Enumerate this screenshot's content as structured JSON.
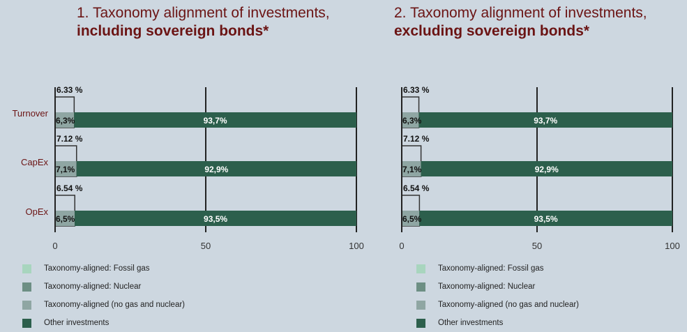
{
  "colors": {
    "fossil_gas": "#a8d5be",
    "nuclear": "#6d8f84",
    "no_gas_nuclear": "#8fa6a3",
    "other": "#2c5f4c",
    "title": "#6b1414"
  },
  "legend": [
    {
      "label": "Taxonomy-aligned: Fossil gas",
      "color_key": "fossil_gas"
    },
    {
      "label": "Taxonomy-aligned: Nuclear",
      "color_key": "nuclear"
    },
    {
      "label": "Taxonomy-aligned (no gas and nuclear)",
      "color_key": "no_gas_nuclear"
    },
    {
      "label": "Other investments",
      "color_key": "other"
    }
  ],
  "chart_data": [
    {
      "type": "bar",
      "orientation": "horizontal",
      "stacked": true,
      "title_prefix": "1. Taxonomy alignment of investments, ",
      "title_bold": "including sovereign bonds*",
      "categories": [
        "Turnover",
        "CapEx",
        "OpEx"
      ],
      "xlim": [
        0,
        100
      ],
      "xticks": [
        "0",
        "50",
        "100"
      ],
      "series": [
        {
          "name": "Taxonomy-aligned (no gas and nuclear)",
          "values": [
            6.3,
            7.1,
            6.5
          ],
          "labels": [
            "6,3%",
            "7,1%",
            "6,5%"
          ]
        },
        {
          "name": "Other investments",
          "values": [
            93.7,
            92.9,
            93.5
          ],
          "labels": [
            "93,7%",
            "92,9%",
            "93,5%"
          ]
        }
      ],
      "total_aligned": [
        6.33,
        7.12,
        6.54
      ],
      "total_aligned_labels": [
        "6.33 %",
        "7.12 %",
        "6.54 %"
      ]
    },
    {
      "type": "bar",
      "orientation": "horizontal",
      "stacked": true,
      "title_prefix": "2. Taxonomy alignment of investments, ",
      "title_bold": "excluding sovereign bonds*",
      "categories": [
        "Turnover",
        "CapEx",
        "OpEx"
      ],
      "xlim": [
        0,
        100
      ],
      "xticks": [
        "0",
        "50",
        "100"
      ],
      "series": [
        {
          "name": "Taxonomy-aligned (no gas and nuclear)",
          "values": [
            6.3,
            7.1,
            6.5
          ],
          "labels": [
            "6,3%",
            "7,1%",
            "6,5%"
          ]
        },
        {
          "name": "Other investments",
          "values": [
            93.7,
            92.9,
            93.5
          ],
          "labels": [
            "93,7%",
            "92,9%",
            "93,5%"
          ]
        }
      ],
      "total_aligned": [
        6.33,
        7.12,
        6.54
      ],
      "total_aligned_labels": [
        "6.33 %",
        "7.12 %",
        "6.54 %"
      ]
    }
  ]
}
